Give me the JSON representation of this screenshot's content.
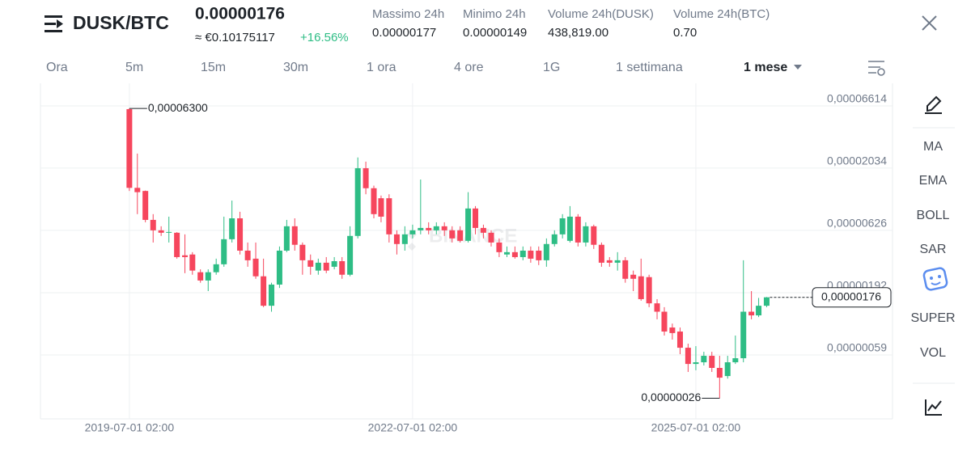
{
  "header": {
    "pair": "DUSK/BTC",
    "price": "0.00000176",
    "fiat_price": "≈ €0.10175117",
    "change": "+16.56%",
    "stats": [
      {
        "label": "Massimo 24h",
        "value": "0.00000177"
      },
      {
        "label": "Minimo 24h",
        "value": "0.00000149"
      },
      {
        "label": "Volume 24h(DUSK)",
        "value": "438,819.00"
      },
      {
        "label": "Volume 24h(BTC)",
        "value": "0.70"
      }
    ]
  },
  "timeframes": {
    "items": [
      "Ora",
      "5m",
      "15m",
      "30m",
      "1 ora",
      "4 ore",
      "1G",
      "1 settimana",
      "1 mese"
    ],
    "active": 8
  },
  "indicators": [
    "MA",
    "EMA",
    "BOLL",
    "SAR",
    "SUPER",
    "VOL"
  ],
  "chart_data": {
    "type": "candlestick",
    "log_scale": true,
    "grid": true,
    "watermark": "BINANCE",
    "up_color": "#2ebd85",
    "down_color": "#f6465d",
    "ylim": [
      1.76e-07,
      0.0001015
    ],
    "yticks": [
      {
        "value": 6.614e-05,
        "label": "0,00006614"
      },
      {
        "value": 2.034e-05,
        "label": "0,00002034"
      },
      {
        "value": 6.26e-06,
        "label": "0,00000626"
      },
      {
        "value": 1.92e-06,
        "label": "0,00000192"
      },
      {
        "value": 5.9e-07,
        "label": "0,00000059"
      }
    ],
    "xlim": [
      "2018-07-22 02:00",
      "2027-08-01 02:00"
    ],
    "xticks": [
      "2019-07-01 02:00",
      "2022-07-01 02:00",
      "2025-07-01 02:00"
    ],
    "x": [
      "2019-07-01 02:00",
      "2019-08-01 02:00",
      "2019-09-01 02:00",
      "2019-10-01 02:00",
      "2019-11-01 02:00",
      "2019-12-01 02:00",
      "2020-01-01 02:00",
      "2020-02-01 02:00",
      "2020-03-01 02:00",
      "2020-04-01 02:00",
      "2020-05-01 02:00",
      "2020-06-01 02:00",
      "2020-07-01 02:00",
      "2020-08-01 02:00",
      "2020-09-01 02:00",
      "2020-10-01 02:00",
      "2020-11-01 02:00",
      "2020-12-01 02:00",
      "2021-01-01 02:00",
      "2021-02-01 02:00",
      "2021-03-01 02:00",
      "2021-04-01 02:00",
      "2021-05-01 02:00",
      "2021-06-01 02:00",
      "2021-07-01 02:00",
      "2021-08-01 02:00",
      "2021-09-01 02:00",
      "2021-10-01 02:00",
      "2021-11-01 02:00",
      "2021-12-01 02:00",
      "2022-01-01 02:00",
      "2022-02-01 02:00",
      "2022-03-01 02:00",
      "2022-04-01 02:00",
      "2022-05-01 02:00",
      "2022-06-01 02:00",
      "2022-07-01 02:00",
      "2022-08-01 02:00",
      "2022-09-01 02:00",
      "2022-10-01 02:00",
      "2022-11-01 02:00",
      "2022-12-01 02:00",
      "2023-01-01 02:00",
      "2023-02-01 02:00",
      "2023-03-01 02:00",
      "2023-04-01 02:00",
      "2023-05-01 02:00",
      "2023-06-01 02:00",
      "2023-07-01 02:00",
      "2023-08-01 02:00",
      "2023-09-01 02:00",
      "2023-10-01 02:00",
      "2023-11-01 02:00",
      "2023-12-01 02:00",
      "2024-01-01 02:00",
      "2024-02-01 02:00",
      "2024-03-01 02:00",
      "2024-04-01 02:00",
      "2024-05-01 02:00",
      "2024-06-01 02:00",
      "2024-07-01 02:00",
      "2024-08-01 02:00",
      "2024-09-01 02:00",
      "2024-10-01 02:00",
      "2024-11-01 02:00",
      "2024-12-01 02:00",
      "2025-01-01 02:00",
      "2025-02-01 02:00",
      "2025-03-01 02:00",
      "2025-04-01 02:00",
      "2025-05-01 02:00",
      "2025-06-01 02:00",
      "2025-07-01 02:00",
      "2025-08-01 02:00",
      "2025-09-01 02:00",
      "2025-10-01 02:00",
      "2025-11-01 02:00",
      "2025-12-01 02:00",
      "2026-01-01 02:00",
      "2026-02-01 02:00",
      "2026-03-01 02:00",
      "2026-04-01 02:00"
    ],
    "open": [
      6.22e-05,
      1.4e-05,
      1.32e-05,
      7.63e-06,
      6.26e-06,
      5.98e-06,
      5.98e-06,
      3.9e-06,
      3.96e-06,
      2.83e-06,
      2.42e-06,
      2.83e-06,
      3.29e-06,
      5.29e-06,
      7.86e-06,
      4.26e-06,
      3.66e-06,
      2.62e-06,
      1.5e-06,
      2.24e-06,
      4.26e-06,
      6.76e-06,
      4.76e-06,
      3.55e-06,
      2.92e-06,
      3.39e-06,
      3.14e-06,
      3.49e-06,
      2.7e-06,
      5.63e-06,
      2.03e-05,
      1.39e-05,
      1.15e-05,
      1.15e-05,
      5.8e-06,
      4.83e-06,
      5.8e-06,
      6.26e-06,
      6.55e-06,
      6.26e-06,
      6.76e-06,
      6.26e-06,
      6.26e-06,
      5.13e-06,
      9.47e-06,
      6.55e-06,
      5.98e-06,
      4.97e-06,
      3.96e-06,
      4.14e-06,
      3.77e-06,
      4.26e-06,
      4.26e-06,
      3.55e-06,
      4.83e-06,
      5.8e-06,
      5.13e-06,
      8.11e-06,
      4.97e-06,
      6.76e-06,
      4.76e-06,
      3.55e-06,
      3.39e-06,
      3.55e-06,
      2.7e-06,
      2.62e-06,
      2.58e-06,
      1.57e-06,
      1.34e-06,
      9.93e-07,
      9.2e-07,
      6.77e-07,
      4.98e-07,
      5.14e-07,
      5.81e-07,
      4.62e-07,
      3.96e-07,
      5.14e-07,
      5.55e-07,
      1.34e-06,
      1.25e-06,
      1.5e-06
    ],
    "high": [
      6.3e-05,
      2.68e-05,
      1.33e-05,
      8.51e-06,
      6.76e-06,
      8.11e-06,
      6.05e-06,
      5.8e-06,
      4.14e-06,
      2.99e-06,
      2.99e-06,
      3.66e-06,
      8.11e-06,
      1.1e-05,
      8.9e-06,
      4.97e-06,
      4.97e-06,
      3.66e-06,
      2.32e-06,
      4.61e-06,
      7.63e-06,
      7.86e-06,
      4.97e-06,
      3.96e-06,
      3.66e-06,
      3.77e-06,
      3.77e-06,
      3.77e-06,
      6.76e-06,
      2.49e-05,
      2.3e-05,
      1.46e-05,
      1.21e-05,
      1.24e-05,
      6.26e-06,
      6.76e-06,
      6.97e-06,
      1.64e-05,
      7.29e-06,
      7.29e-06,
      7.29e-06,
      6.76e-06,
      6.76e-06,
      1.29e-05,
      9.91e-06,
      6.97e-06,
      6.26e-06,
      5.37e-06,
      4.61e-06,
      4.61e-06,
      4.61e-06,
      4.61e-06,
      4.61e-06,
      5.37e-06,
      6.26e-06,
      8.51e-06,
      9.91e-06,
      8.51e-06,
      7.29e-06,
      6.97e-06,
      4.97e-06,
      3.77e-06,
      4.14e-06,
      3.77e-06,
      2.92e-06,
      3.66e-06,
      2.7e-06,
      1.7e-06,
      1.46e-06,
      1.07e-06,
      9.93e-07,
      7.31e-07,
      6.98e-07,
      6.27e-07,
      6.27e-07,
      5.81e-07,
      5.81e-07,
      8.53e-07,
      3.55e-06,
      1.98e-06,
      1.74e-06,
      1.77e-06
    ],
    "low": [
      1.32e-05,
      8.51e-06,
      7.29e-06,
      4.97e-06,
      5.63e-06,
      4.97e-06,
      3.66e-06,
      2.78e-06,
      2.7e-06,
      2.32e-06,
      1.98e-06,
      2.7e-06,
      3.14e-06,
      4.97e-06,
      3.96e-06,
      3.14e-06,
      2.5e-06,
      1.46e-06,
      1.34e-06,
      2.1e-06,
      4.14e-06,
      4.26e-06,
      2.7e-06,
      2.7e-06,
      2.7e-06,
      2.78e-06,
      2.99e-06,
      2.5e-06,
      2.62e-06,
      5.37e-06,
      1.24e-05,
      7.86e-06,
      7.29e-06,
      4.97e-06,
      3.96e-06,
      4.26e-06,
      5.37e-06,
      5.8e-06,
      5.8e-06,
      5.8e-06,
      5.63e-06,
      4.97e-06,
      4.97e-06,
      4.97e-06,
      5.8e-06,
      5.37e-06,
      4.61e-06,
      3.77e-06,
      3.77e-06,
      3.66e-06,
      3.55e-06,
      3.39e-06,
      3.24e-06,
      3.14e-06,
      4.61e-06,
      5.37e-06,
      4.97e-06,
      4.61e-06,
      4.61e-06,
      4.4e-06,
      3.14e-06,
      3.14e-06,
      2.92e-06,
      2.32e-06,
      1.98e-06,
      1.65e-06,
      1.46e-06,
      1.16e-06,
      8.53e-07,
      7.9e-07,
      5.99e-07,
      4.28e-07,
      4.42e-07,
      4.84e-07,
      4.28e-07,
      2.6e-07,
      3.77e-07,
      4.98e-07,
      5.14e-07,
      1.16e-06,
      1.21e-06,
      1.46e-06
    ],
    "close": [
      1.4e-05,
      1.29e-05,
      7.63e-06,
      6.26e-06,
      5.98e-06,
      6.07e-06,
      3.77e-06,
      3.77e-06,
      2.92e-06,
      2.42e-06,
      2.83e-06,
      3.29e-06,
      5.29e-06,
      7.86e-06,
      4.26e-06,
      3.55e-06,
      2.62e-06,
      1.5e-06,
      2.24e-06,
      4.26e-06,
      6.76e-06,
      4.76e-06,
      3.55e-06,
      3.14e-06,
      3.39e-06,
      2.92e-06,
      3.49e-06,
      2.7e-06,
      5.63e-06,
      2.03e-05,
      1.39e-05,
      8.51e-06,
      8.11e-06,
      5.8e-06,
      4.83e-06,
      5.8e-06,
      6.26e-06,
      6.55e-06,
      6.26e-06,
      6.76e-06,
      6.26e-06,
      5.37e-06,
      5.13e-06,
      9.47e-06,
      6.55e-06,
      5.98e-06,
      4.97e-06,
      4.14e-06,
      4.14e-06,
      3.77e-06,
      4.26e-06,
      3.66e-06,
      3.55e-06,
      4.83e-06,
      5.8e-06,
      7.86e-06,
      8.11e-06,
      4.97e-06,
      6.76e-06,
      4.76e-06,
      3.39e-06,
      3.39e-06,
      3.55e-06,
      2.5e-06,
      2.5e-06,
      1.7e-06,
      1.57e-06,
      1.34e-06,
      9.2e-07,
      8.94e-07,
      6.77e-07,
      4.98e-07,
      5.14e-07,
      5.81e-07,
      4.62e-07,
      3.84e-07,
      5.14e-07,
      5.55e-07,
      1.34e-06,
      1.25e-06,
      1.5e-06,
      1.76e-06
    ],
    "annotations": [
      {
        "value": 6.3e-05,
        "label": "0,00006300"
      },
      {
        "value": 2.6e-07,
        "label": "0,00000026"
      }
    ],
    "last_price": {
      "value": 1.76e-06,
      "label": "0,00000176"
    }
  }
}
